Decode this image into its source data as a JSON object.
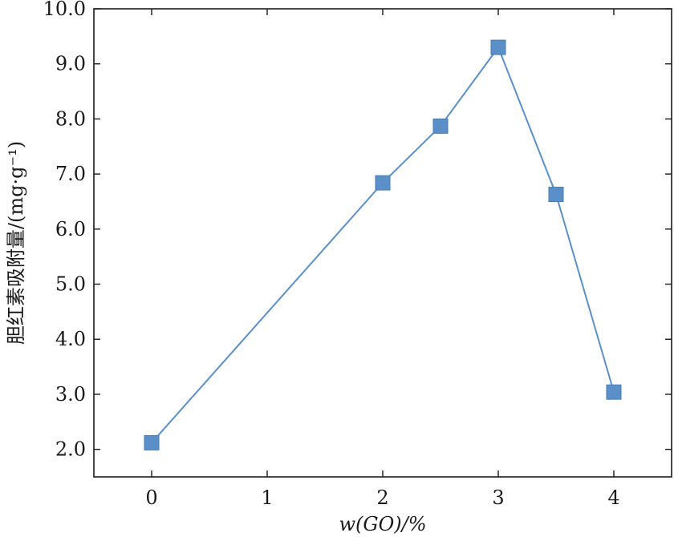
{
  "chart_data": {
    "type": "line",
    "title": "",
    "xlabel": "w(GO)/%",
    "ylabel": "胆红素吸附量/(mg·g⁻¹)",
    "xlim": [
      -0.5,
      4.5
    ],
    "ylim": [
      1.5,
      10.0
    ],
    "x_ticks": [
      "0",
      "1",
      "2",
      "3",
      "4"
    ],
    "x_tick_values": [
      0,
      1,
      2,
      3,
      4
    ],
    "y_ticks": [
      "2.0",
      "3.0",
      "4.0",
      "5.0",
      "6.0",
      "7.0",
      "8.0",
      "9.0",
      "10.0"
    ],
    "y_tick_values": [
      2,
      3,
      4,
      5,
      6,
      7,
      8,
      9,
      10
    ],
    "grid": false,
    "legend": "none",
    "series": [
      {
        "marker": "square",
        "color": "#5b8fc7",
        "x": [
          0,
          2,
          2.5,
          3,
          3.5,
          4
        ],
        "y": [
          2.12,
          6.84,
          7.87,
          9.3,
          6.63,
          3.04
        ]
      }
    ]
  }
}
